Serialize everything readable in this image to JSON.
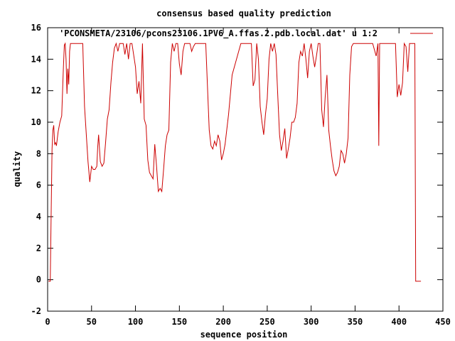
{
  "chart_data": {
    "type": "line",
    "title": "consensus based quality prediction",
    "xlabel": "sequence position",
    "ylabel": "quality",
    "xlim": [
      0,
      450
    ],
    "ylim": [
      -2,
      16
    ],
    "xticks": [
      0,
      50,
      100,
      150,
      200,
      250,
      300,
      350,
      400,
      450
    ],
    "yticks": [
      -2,
      0,
      2,
      4,
      6,
      8,
      10,
      12,
      14,
      16
    ],
    "grid": false,
    "legend_position": "top-right",
    "series": [
      {
        "name": "'PCONSMETA/23106/pcons23106.1PV6_A.ffas.2.pdb.local.dat' u 1:2",
        "color": "#cc0000",
        "x": [
          1,
          2,
          3,
          4,
          5,
          6,
          7,
          8,
          9,
          10,
          12,
          14,
          16,
          18,
          19,
          20,
          21,
          22,
          23,
          24,
          25,
          26,
          27,
          28,
          30,
          35,
          40,
          42,
          44,
          46,
          48,
          50,
          52,
          54,
          56,
          57,
          58,
          60,
          62,
          64,
          66,
          68,
          70,
          72,
          74,
          76,
          78,
          80,
          82,
          84,
          86,
          88,
          90,
          92,
          94,
          96,
          100,
          102,
          104,
          106,
          108,
          110,
          112,
          114,
          116,
          118,
          120,
          122,
          124,
          126,
          128,
          130,
          132,
          134,
          136,
          138,
          140,
          142,
          144,
          146,
          148,
          150,
          152,
          154,
          156,
          158,
          160,
          162,
          164,
          166,
          168,
          170,
          180,
          184,
          186,
          188,
          190,
          192,
          194,
          196,
          198,
          200,
          202,
          206,
          210,
          220,
          228,
          230,
          232,
          234,
          236,
          238,
          240,
          242,
          244,
          246,
          248,
          250,
          252,
          254,
          256,
          258,
          260,
          262,
          264,
          266,
          268,
          270,
          272,
          274,
          276,
          278,
          280,
          282,
          284,
          286,
          288,
          290,
          292,
          294,
          296,
          298,
          300,
          302,
          304,
          306,
          308,
          310,
          312,
          314,
          316,
          318,
          320,
          322,
          324,
          326,
          328,
          330,
          332,
          334,
          336,
          338,
          340,
          342,
          344,
          346,
          348,
          350,
          354,
          360,
          370,
          374,
          376,
          377,
          378,
          380,
          384,
          390,
          396,
          398,
          400,
          402,
          404,
          406,
          408,
          410,
          412,
          414,
          416,
          418,
          419,
          420,
          421,
          422,
          425
        ],
        "y": [
          -0.1,
          -0.1,
          -0.1,
          4,
          8.3,
          9.5,
          9.8,
          8.6,
          8.7,
          8.5,
          9.4,
          10,
          10.4,
          13.5,
          14.9,
          15,
          14,
          11.8,
          13.4,
          12.4,
          14.5,
          15,
          15,
          15,
          15,
          15,
          15,
          11,
          9.2,
          7.5,
          6.2,
          7.2,
          7,
          7,
          7.2,
          8.4,
          9.2,
          7.5,
          7.2,
          7.4,
          8.7,
          10.2,
          10.8,
          12.5,
          13.8,
          14.7,
          15,
          14.5,
          15,
          15,
          15,
          14.3,
          15,
          14,
          15,
          15,
          13.5,
          11.8,
          12.6,
          11.2,
          15,
          10.2,
          9.8,
          7.6,
          6.8,
          6.6,
          6.4,
          8.6,
          7.2,
          5.6,
          5.8,
          5.6,
          7,
          8.5,
          9.2,
          9.5,
          13.8,
          15,
          14.5,
          15,
          15,
          13.7,
          13,
          14.5,
          15,
          15,
          15,
          15,
          14.5,
          14.8,
          15,
          15,
          15,
          9.5,
          8.5,
          8.3,
          8.8,
          8.5,
          9.2,
          8.8,
          7.6,
          8,
          8.6,
          10.5,
          13,
          15,
          15,
          15,
          15,
          12.3,
          12.7,
          15,
          14,
          11,
          10,
          9.2,
          10.5,
          11.5,
          14,
          15,
          14.5,
          15,
          14.3,
          11.7,
          9.2,
          8.2,
          8.8,
          9.6,
          7.7,
          8.3,
          9,
          10,
          10,
          10.3,
          11.2,
          13.8,
          14.5,
          14.2,
          15,
          14,
          12.8,
          14.5,
          15,
          14.2,
          13.5,
          14.2,
          15,
          15,
          10.8,
          9.7,
          11.6,
          13,
          9.5,
          8.5,
          7.6,
          6.9,
          6.6,
          6.8,
          7.2,
          8.2,
          8,
          7.4,
          8,
          9,
          13,
          14.8,
          15,
          15,
          15,
          15,
          15,
          14.2,
          15,
          8.5,
          15,
          15,
          15,
          15,
          15,
          11.6,
          12.4,
          11.7,
          12.5,
          15,
          14.8,
          13.2,
          15,
          15,
          15,
          15,
          -0.1,
          -0.1,
          -0.1,
          -0.1,
          -0.1
        ]
      }
    ]
  }
}
